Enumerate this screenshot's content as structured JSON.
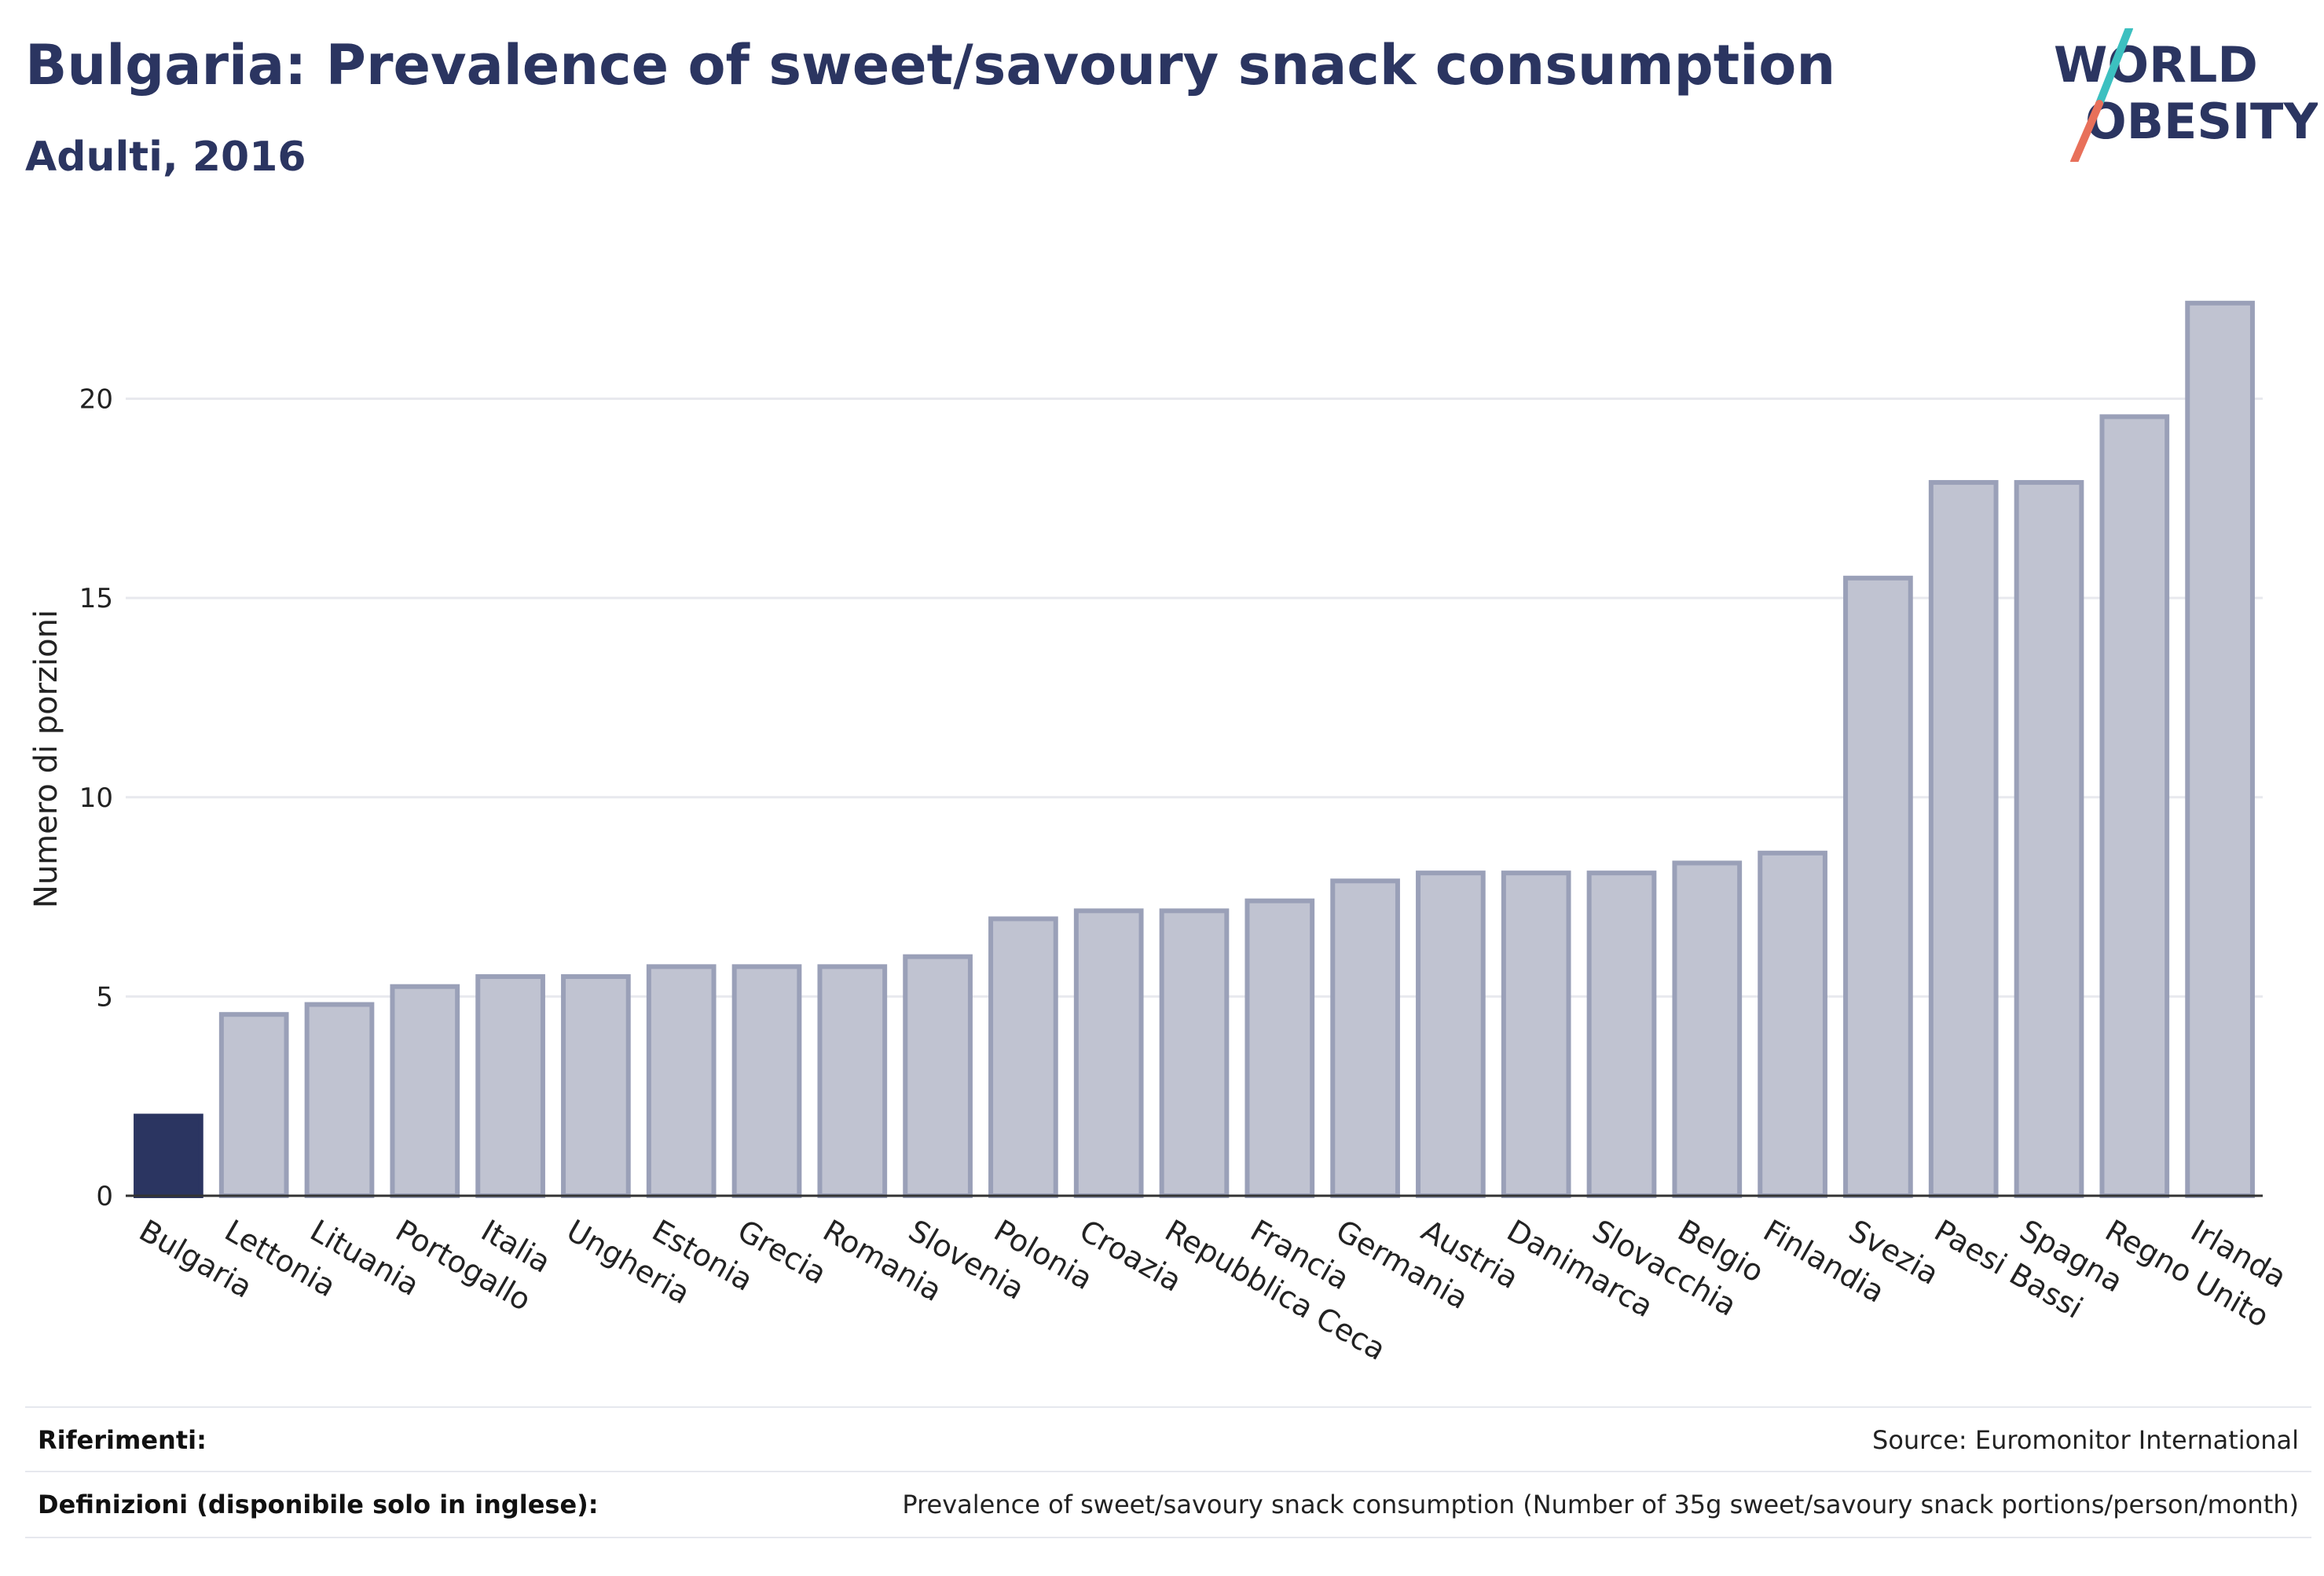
{
  "header": {
    "title": "Bulgaria: Prevalence of sweet/savoury snack consumption",
    "subtitle": "Adulti, 2016"
  },
  "logo": {
    "line1": "WORLD",
    "line2": "OBESITY"
  },
  "colors": {
    "highlight": "#2b3561",
    "bar_fill": "#c0c3d1",
    "bar_stroke": "#9aa0b8",
    "text_dark": "#2b3561",
    "logo_teal": "#3cc0c0",
    "logo_coral": "#e8705a"
  },
  "chart_data": {
    "type": "bar",
    "categories": [
      "Bulgaria",
      "Lettonia",
      "Lituania",
      "Portogallo",
      "Italia",
      "Ungheria",
      "Estonia",
      "Grecia",
      "Romania",
      "Slovenia",
      "Polonia",
      "Croazia",
      "Repubblica Ceca",
      "Francia",
      "Germania",
      "Austria",
      "Danimarca",
      "Slovacchia",
      "Belgio",
      "Finlandia",
      "Svezia",
      "Paesi Bassi",
      "Spagna",
      "Regno Unito",
      "Irlanda"
    ],
    "values": [
      2.0,
      4.55,
      4.8,
      5.25,
      5.5,
      5.5,
      5.75,
      5.75,
      5.75,
      6.0,
      6.95,
      7.15,
      7.15,
      7.4,
      7.9,
      8.1,
      8.1,
      8.1,
      8.35,
      8.6,
      15.5,
      17.9,
      17.9,
      19.55,
      22.4
    ],
    "highlight": "Bulgaria",
    "xlabel": "",
    "ylabel": "Numero di porzioni",
    "ylim": [
      0,
      23.5
    ],
    "yticks": [
      0,
      5,
      10,
      15,
      20
    ],
    "grid": true,
    "legend": "none"
  },
  "footer": {
    "references_label": "Riferimenti:",
    "references_value": "Source: Euromonitor International",
    "definitions_label": "Definizioni (disponibile solo in inglese):",
    "definitions_value": "Prevalence of sweet/savoury snack consumption (Number of 35g sweet/savoury snack portions/person/month)"
  }
}
